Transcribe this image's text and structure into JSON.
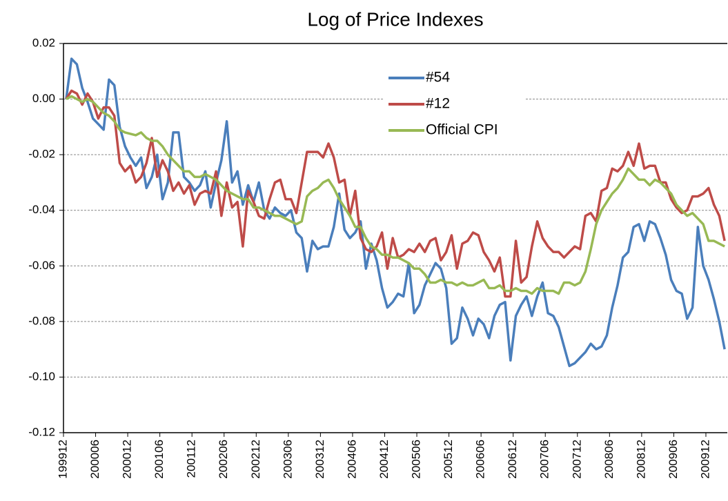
{
  "chart_data": {
    "type": "line",
    "title": "Log of Price Indexes",
    "categories": [
      "199912",
      null,
      null,
      null,
      null,
      null,
      "200006",
      null,
      null,
      null,
      null,
      null,
      "200012",
      null,
      null,
      null,
      null,
      null,
      "200106",
      null,
      null,
      null,
      null,
      null,
      "200112",
      null,
      null,
      null,
      null,
      null,
      "200206",
      null,
      null,
      null,
      null,
      null,
      "200212",
      null,
      null,
      null,
      null,
      null,
      "200306",
      null,
      null,
      null,
      null,
      null,
      "200312",
      null,
      null,
      null,
      null,
      null,
      "200406",
      null,
      null,
      null,
      null,
      null,
      "200412",
      null,
      null,
      null,
      null,
      null,
      "200506",
      null,
      null,
      null,
      null,
      null,
      "200512",
      null,
      null,
      null,
      null,
      null,
      "200606",
      null,
      null,
      null,
      null,
      null,
      "200612",
      null,
      null,
      null,
      null,
      null,
      "200706",
      null,
      null,
      null,
      null,
      null,
      "200712",
      null,
      null,
      null,
      null,
      null,
      "200806",
      null,
      null,
      null,
      null,
      null,
      "200812",
      null,
      null,
      null,
      null,
      null,
      "200906",
      null,
      null,
      null,
      null,
      null,
      "200912",
      null,
      null,
      null
    ],
    "series": [
      {
        "name": "#54",
        "color": "#4a7ebb",
        "values": [
          0,
          0.0145,
          0.0125,
          0.004,
          -0.001,
          -0.007,
          -0.009,
          -0.011,
          0.007,
          0.005,
          -0.01,
          -0.017,
          -0.021,
          -0.024,
          -0.021,
          -0.032,
          -0.028,
          -0.02,
          -0.036,
          -0.03,
          -0.012,
          -0.012,
          -0.028,
          -0.03,
          -0.033,
          -0.031,
          -0.026,
          -0.039,
          -0.03,
          -0.022,
          -0.008,
          -0.03,
          -0.026,
          -0.038,
          -0.031,
          -0.037,
          -0.03,
          -0.04,
          -0.043,
          -0.039,
          -0.041,
          -0.042,
          -0.04,
          -0.048,
          -0.05,
          -0.062,
          -0.051,
          -0.054,
          -0.053,
          -0.053,
          -0.046,
          -0.034,
          -0.047,
          -0.05,
          -0.048,
          -0.044,
          -0.061,
          -0.052,
          -0.058,
          -0.068,
          -0.075,
          -0.073,
          -0.07,
          -0.071,
          -0.059,
          -0.077,
          -0.074,
          -0.067,
          -0.063,
          -0.059,
          -0.061,
          -0.068,
          -0.088,
          -0.086,
          -0.075,
          -0.079,
          -0.085,
          -0.079,
          -0.081,
          -0.086,
          -0.078,
          -0.074,
          -0.073,
          -0.094,
          -0.078,
          -0.074,
          -0.071,
          -0.078,
          -0.071,
          -0.066,
          -0.077,
          -0.078,
          -0.082,
          -0.089,
          -0.096,
          -0.095,
          -0.093,
          -0.091,
          -0.088,
          -0.09,
          -0.089,
          -0.085,
          -0.075,
          -0.067,
          -0.057,
          -0.055,
          -0.046,
          -0.045,
          -0.051,
          -0.044,
          -0.045,
          -0.05,
          -0.056,
          -0.065,
          -0.069,
          -0.07,
          -0.079,
          -0.075,
          -0.046,
          -0.06,
          -0.065,
          -0.072,
          -0.08,
          -0.09
        ]
      },
      {
        "name": "#12",
        "color": "#be4b48",
        "values": [
          0,
          0.003,
          0.002,
          -0.002,
          0.002,
          -0.001,
          -0.007,
          -0.003,
          -0.003,
          -0.006,
          -0.023,
          -0.026,
          -0.024,
          -0.03,
          -0.028,
          -0.023,
          -0.014,
          -0.028,
          -0.022,
          -0.026,
          -0.033,
          -0.03,
          -0.034,
          -0.031,
          -0.038,
          -0.034,
          -0.033,
          -0.034,
          -0.026,
          -0.042,
          -0.03,
          -0.039,
          -0.037,
          -0.053,
          -0.033,
          -0.037,
          -0.042,
          -0.043,
          -0.036,
          -0.03,
          -0.029,
          -0.036,
          -0.036,
          -0.041,
          -0.03,
          -0.019,
          -0.019,
          -0.019,
          -0.021,
          -0.016,
          -0.021,
          -0.03,
          -0.029,
          -0.042,
          -0.033,
          -0.05,
          -0.054,
          -0.055,
          -0.053,
          -0.048,
          -0.061,
          -0.05,
          -0.057,
          -0.056,
          -0.054,
          -0.055,
          -0.052,
          -0.055,
          -0.051,
          -0.05,
          -0.058,
          -0.055,
          -0.049,
          -0.061,
          -0.052,
          -0.051,
          -0.048,
          -0.049,
          -0.055,
          -0.058,
          -0.062,
          -0.057,
          -0.071,
          -0.071,
          -0.051,
          -0.066,
          -0.064,
          -0.053,
          -0.044,
          -0.05,
          -0.053,
          -0.055,
          -0.055,
          -0.057,
          -0.055,
          -0.053,
          -0.054,
          -0.042,
          -0.041,
          -0.044,
          -0.033,
          -0.032,
          -0.025,
          -0.026,
          -0.024,
          -0.019,
          -0.024,
          -0.016,
          -0.025,
          -0.024,
          -0.024,
          -0.03,
          -0.03,
          -0.036,
          -0.039,
          -0.041,
          -0.04,
          -0.035,
          -0.035,
          -0.034,
          -0.032,
          -0.038,
          -0.042,
          -0.051
        ]
      },
      {
        "name": "Official CPI",
        "color": "#98b954",
        "values": [
          0,
          0.001,
          0,
          -0.001,
          0,
          -0.001,
          -0.003,
          -0.005,
          -0.006,
          -0.008,
          -0.011,
          -0.012,
          -0.0125,
          -0.013,
          -0.012,
          -0.014,
          -0.015,
          -0.015,
          -0.017,
          -0.02,
          -0.022,
          -0.024,
          -0.026,
          -0.026,
          -0.028,
          -0.028,
          -0.027,
          -0.028,
          -0.029,
          -0.031,
          -0.033,
          -0.034,
          -0.035,
          -0.036,
          -0.036,
          -0.039,
          -0.039,
          -0.04,
          -0.041,
          -0.042,
          -0.042,
          -0.043,
          -0.044,
          -0.045,
          -0.044,
          -0.035,
          -0.033,
          -0.032,
          -0.03,
          -0.029,
          -0.032,
          -0.036,
          -0.039,
          -0.042,
          -0.046,
          -0.046,
          -0.05,
          -0.053,
          -0.054,
          -0.056,
          -0.056,
          -0.057,
          -0.057,
          -0.058,
          -0.059,
          -0.061,
          -0.061,
          -0.063,
          -0.066,
          -0.066,
          -0.065,
          -0.066,
          -0.066,
          -0.067,
          -0.066,
          -0.067,
          -0.067,
          -0.066,
          -0.065,
          -0.068,
          -0.068,
          -0.067,
          -0.069,
          -0.069,
          -0.068,
          -0.069,
          -0.069,
          -0.07,
          -0.068,
          -0.069,
          -0.069,
          -0.069,
          -0.07,
          -0.066,
          -0.066,
          -0.067,
          -0.066,
          -0.062,
          -0.054,
          -0.045,
          -0.04,
          -0.037,
          -0.034,
          -0.032,
          -0.029,
          -0.025,
          -0.027,
          -0.029,
          -0.029,
          -0.031,
          -0.029,
          -0.03,
          -0.032,
          -0.034,
          -0.038,
          -0.04,
          -0.042,
          -0.041,
          -0.043,
          -0.045,
          -0.051,
          -0.051,
          -0.052,
          -0.053
        ]
      }
    ],
    "ylim": [
      -0.12,
      0.02
    ],
    "yticks": [
      0.02,
      {
        "value": 0,
        "label": "0.00"
      },
      -0.02,
      -0.04,
      -0.06,
      -0.08,
      {
        "value": -0.1,
        "label": "-0.10"
      },
      -0.12
    ],
    "grid": true,
    "legend": "upper center"
  }
}
